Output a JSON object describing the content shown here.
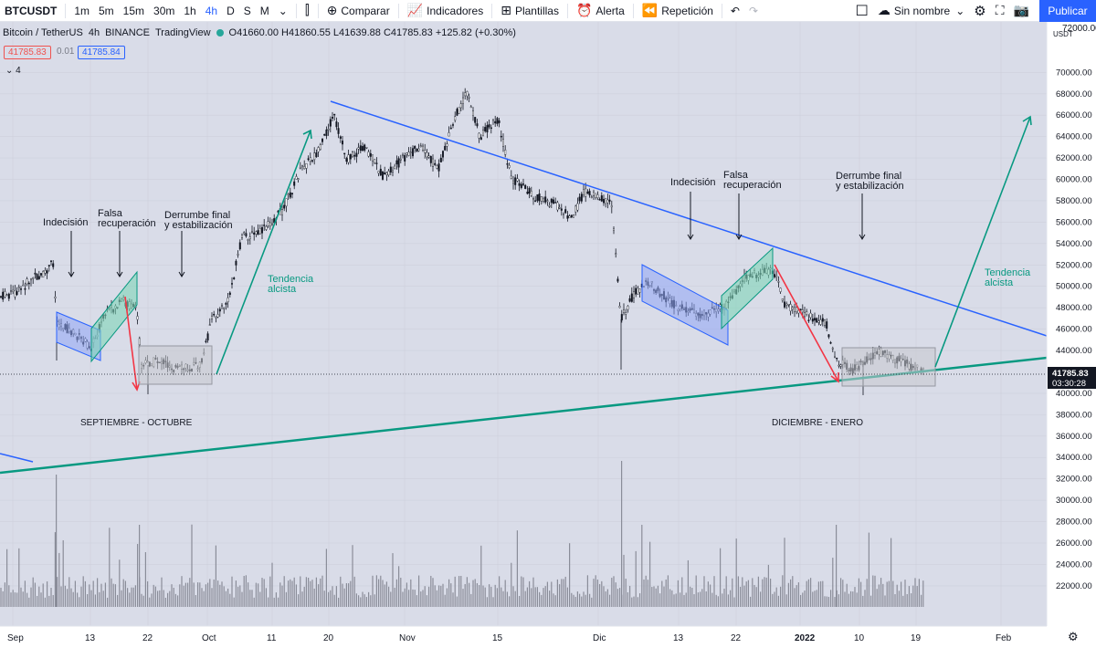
{
  "toolbar": {
    "symbol": "BTCUSDT",
    "intervals": [
      "1m",
      "5m",
      "15m",
      "30m",
      "1h",
      "4h",
      "D",
      "S",
      "M"
    ],
    "active_interval": "4h",
    "compare": "Comparar",
    "indicators": "Indicadores",
    "templates": "Plantillas",
    "alert": "Alerta",
    "replay": "Repetición",
    "layout_name": "Sin nombre",
    "publish": "Publicar"
  },
  "legend": {
    "title": "Bitcoin / TetherUS",
    "interval": "4h",
    "exchange": "BINANCE",
    "source": "TradingView",
    "ohlc": "O41660.00 H41860.55 L41639.88 C41785.83 +125.82 (+0.30%)",
    "sell_price": "41785.83",
    "spread": "0.01",
    "buy_price": "41785.84",
    "indicator_count": "4"
  },
  "price_axis": {
    "currency": "USDT",
    "labels": [
      "70000.00",
      "68000.00",
      "66000.00",
      "64000.00",
      "62000.00",
      "60000.00",
      "58000.00",
      "56000.00",
      "54000.00",
      "52000.00",
      "50000.00",
      "48000.00",
      "46000.00",
      "44000.00",
      "40000.00",
      "38000.00",
      "36000.00",
      "34000.00",
      "32000.00",
      "30000.00",
      "28000.00",
      "26000.00",
      "24000.00",
      "22000.00"
    ],
    "top_label": "72000.00",
    "current_price": "41785.83",
    "countdown": "03:30:28"
  },
  "time_axis": {
    "labels": [
      "Sep",
      "13",
      "22",
      "Oct",
      "11",
      "20",
      "Nov",
      "15",
      "Dic",
      "13",
      "22",
      "2022",
      "10",
      "19",
      "Feb"
    ]
  },
  "annotations": {
    "indecision_1": "Indecisión",
    "false_recovery_1a": "Falsa",
    "false_recovery_1b": "recuperación",
    "final_collapse_1a": "Derrumbe final",
    "final_collapse_1b": "y estabilización",
    "uptrend_1a": "Tendencia",
    "uptrend_1b": "alcista",
    "indecision_2": "Indecisión",
    "false_recovery_2a": "Falsa",
    "false_recovery_2b": "recuperación",
    "final_collapse_2a": "Derrumbe final",
    "final_collapse_2b": "y estabilización",
    "uptrend_2a": "Tendencia",
    "uptrend_2b": "alcista",
    "period_1": "SEPTIEMBRE - OCTUBRE",
    "period_2": "DICIEMBRE - ENERO"
  },
  "colors": {
    "accent": "#2962ff",
    "trend_green": "#089981",
    "resistance_blue": "#2962ff",
    "drop_red": "#f23645",
    "bg": "#d9dce8"
  }
}
